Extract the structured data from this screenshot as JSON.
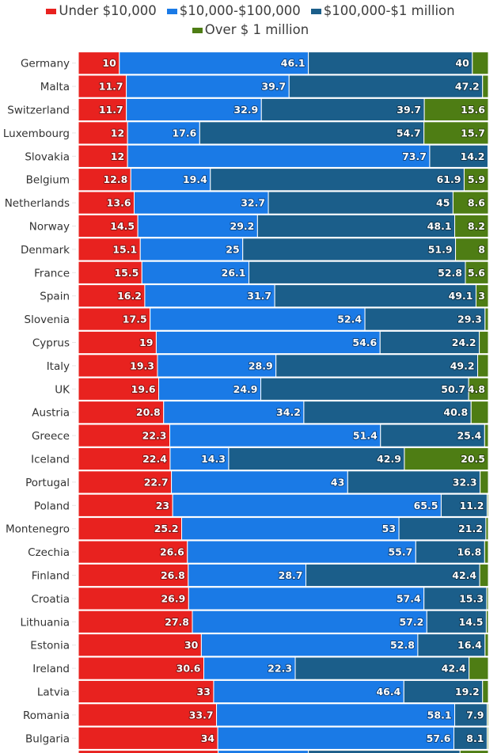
{
  "chart_data": {
    "type": "bar",
    "orientation": "horizontal",
    "stacked": "percent",
    "title": "",
    "xlabel": "",
    "ylabel": "",
    "xlim": [
      0,
      100
    ],
    "grid": false,
    "legend_position": "top-center",
    "categories": [
      "Germany",
      "Malta",
      "Switzerland",
      "Luxembourg",
      "Slovakia",
      "Belgium",
      "Netherlands",
      "Norway",
      "Denmark",
      "France",
      "Spain",
      "Slovenia",
      "Cyprus",
      "Italy",
      "UK",
      "Austria",
      "Greece",
      "Iceland",
      "Portugal",
      "Poland",
      "Montenegro",
      "Czechia",
      "Finland",
      "Croatia",
      "Lithuania",
      "Estonia",
      "Ireland",
      "Latvia",
      "Romania",
      "Bulgaria"
    ],
    "series": [
      {
        "name": "Under $10,000",
        "color": "#e8221f",
        "values": [
          10,
          11.7,
          11.7,
          12,
          12,
          12.8,
          13.6,
          14.5,
          15.1,
          15.5,
          16.2,
          17.5,
          19,
          19.3,
          19.6,
          20.8,
          22.3,
          22.4,
          22.7,
          23,
          25.2,
          26.6,
          26.8,
          26.9,
          27.8,
          30,
          30.6,
          33,
          33.7,
          34
        ]
      },
      {
        "name": "$10,000-$100,000",
        "color": "#1a7ae6",
        "values": [
          46.1,
          39.7,
          32.9,
          17.6,
          73.7,
          19.4,
          32.7,
          29.2,
          25,
          26.1,
          31.7,
          52.4,
          54.6,
          28.9,
          24.9,
          34.2,
          51.4,
          14.3,
          43,
          65.5,
          53,
          55.7,
          28.7,
          57.4,
          57.2,
          52.8,
          22.3,
          46.4,
          58.1,
          57.6
        ]
      },
      {
        "name": "$100,000-$1 million",
        "color": "#1b5e8a",
        "values": [
          40,
          47.2,
          39.7,
          54.7,
          14.2,
          61.9,
          45,
          48.1,
          51.9,
          52.8,
          49.1,
          29.3,
          24.2,
          49.2,
          50.7,
          40.8,
          25.4,
          42.9,
          32.3,
          11.2,
          21.2,
          16.8,
          42.4,
          15.3,
          14.5,
          16.4,
          42.4,
          19.2,
          7.9,
          8.1
        ]
      },
      {
        "name": "Over $ 1 million",
        "color": "#4e7d14",
        "values": [
          3.9,
          1.4,
          15.6,
          15.7,
          0.1,
          5.9,
          8.6,
          8.2,
          8,
          5.6,
          3,
          0.8,
          2.2,
          2.6,
          4.8,
          4.2,
          0.9,
          20.5,
          2,
          0.3,
          0.6,
          0.9,
          2.1,
          0.4,
          0.5,
          0.8,
          4.7,
          1.4,
          0.3,
          0.3
        ]
      }
    ],
    "data_labels_visible": {
      "Over $ 1 million": [
        false,
        false,
        true,
        true,
        false,
        true,
        true,
        true,
        true,
        true,
        true,
        false,
        false,
        false,
        true,
        false,
        false,
        true,
        false,
        false,
        false,
        false,
        false,
        false,
        false,
        false,
        false,
        false,
        false,
        false
      ]
    }
  }
}
